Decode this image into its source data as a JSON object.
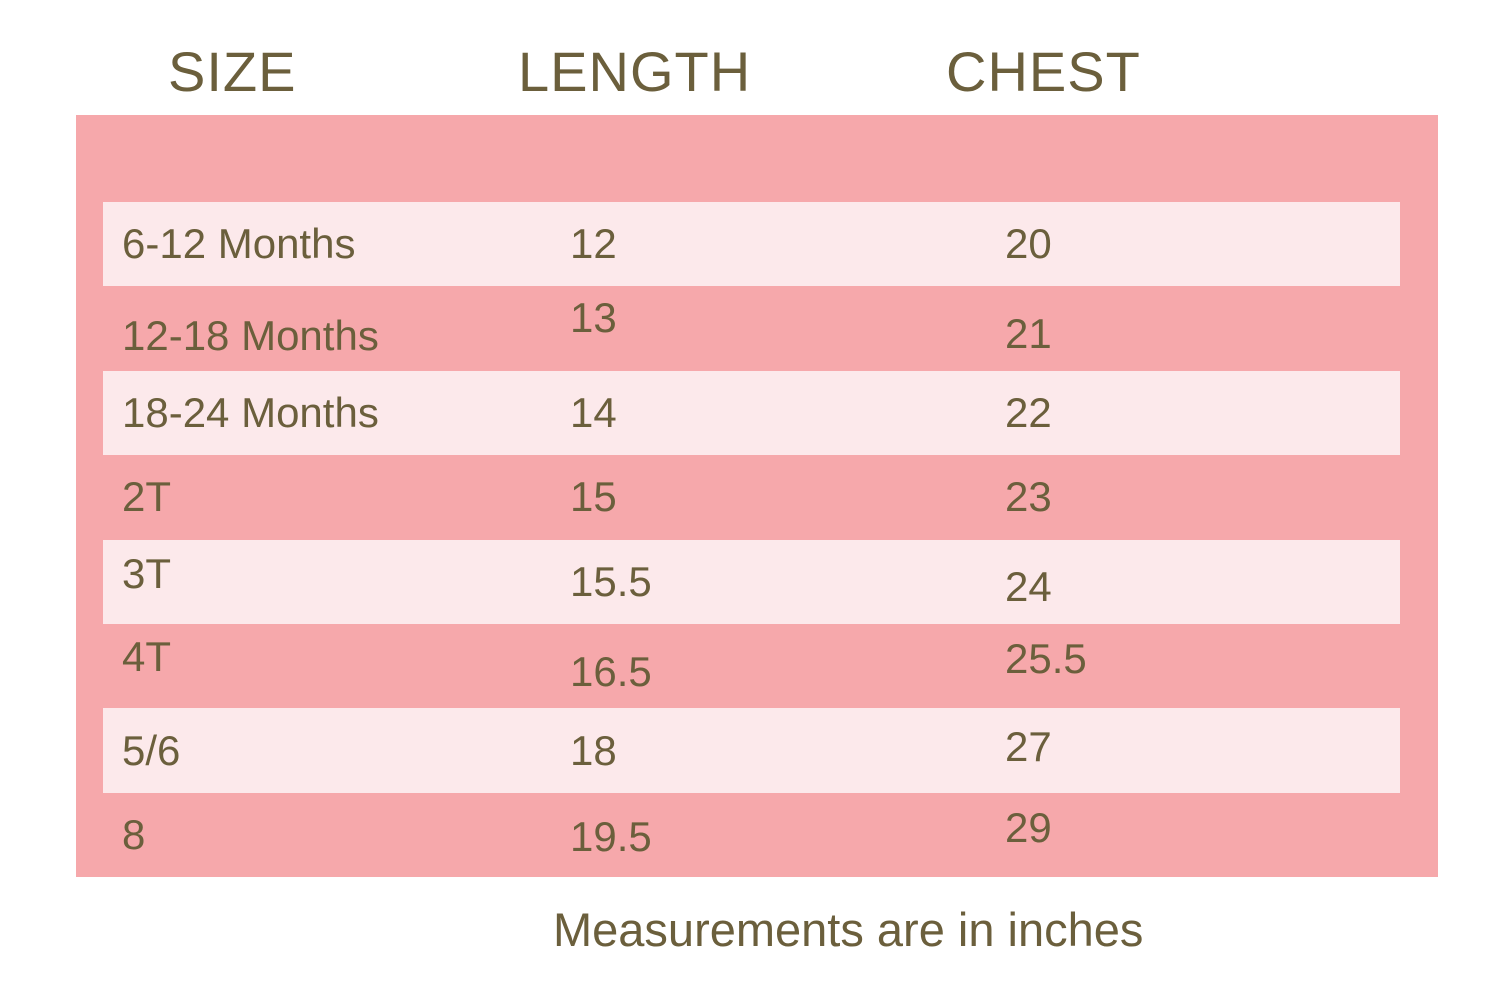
{
  "table": {
    "headers": [
      "SIZE",
      "LENGTH",
      "CHEST"
    ],
    "rows": [
      {
        "size": "6-12 Months",
        "length": "12",
        "chest": "20"
      },
      {
        "size": "12-18 Months",
        "length": "13",
        "chest": "21"
      },
      {
        "size": "18-24 Months",
        "length": "14",
        "chest": "22"
      },
      {
        "size": "2T",
        "length": "15",
        "chest": "23"
      },
      {
        "size": "3T",
        "length": "15.5",
        "chest": "24"
      },
      {
        "size": "4T",
        "length": "16.5",
        "chest": "25.5"
      },
      {
        "size": "5/6",
        "length": "18",
        "chest": "27"
      },
      {
        "size": "8",
        "length": "19.5",
        "chest": "29"
      }
    ],
    "footer": "Measurements are in inches"
  },
  "colors": {
    "panel_pink": "#F6A8AB",
    "row_light_pink": "#FCE9EB",
    "text_olive": "#6B5F3C"
  },
  "chart_data": {
    "type": "table",
    "columns": [
      "SIZE",
      "LENGTH",
      "CHEST"
    ],
    "rows": [
      [
        "6-12 Months",
        12,
        20
      ],
      [
        "12-18 Months",
        13,
        21
      ],
      [
        "18-24 Months",
        14,
        22
      ],
      [
        "2T",
        15,
        23
      ],
      [
        "3T",
        15.5,
        24
      ],
      [
        "4T",
        16.5,
        25.5
      ],
      [
        "5/6",
        18,
        27
      ],
      [
        "8",
        19.5,
        29
      ]
    ],
    "units_note": "Measurements are in inches",
    "layout_hints": {
      "stripes": "alternating rows highlighted light pink on salmon panel, starting with first row",
      "alignment": "left-aligned columns, no gridlines, no borders"
    }
  }
}
